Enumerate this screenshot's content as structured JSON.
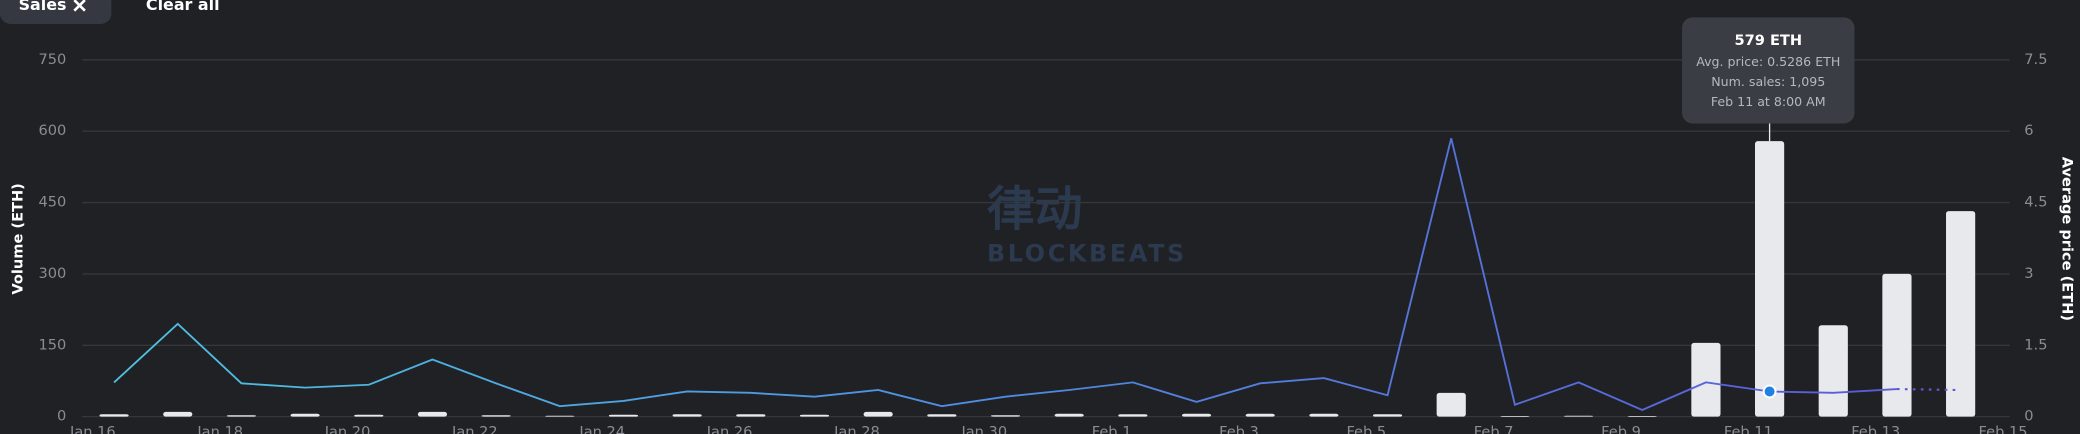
{
  "filters": {
    "chip": "Sales",
    "clear": "Clear all"
  },
  "watermark": {
    "cn": "律动",
    "en": "BLOCKBEATS"
  },
  "tooltip": {
    "title": "579 ETH",
    "avg": "Avg. price: 0.5286 ETH",
    "sales": "Num. sales: 1,095",
    "date": "Feb 11 at 8:00 AM"
  },
  "chart_data": {
    "type": "bar",
    "ylabel": "Volume (ETH)",
    "y2label": "Average price (ETH)",
    "categories": [
      "Jan 16",
      null,
      "Jan 18",
      null,
      "Jan 20",
      null,
      "Jan 22",
      null,
      "Jan 24",
      null,
      "Jan 26",
      null,
      "Jan 28",
      null,
      "Jan 30",
      null,
      "Feb 1",
      null,
      "Feb 3",
      null,
      "Feb 5",
      null,
      "Feb 7",
      null,
      "Feb 9",
      null,
      "Feb 11",
      null,
      "Feb 13",
      null,
      "Feb 15"
    ],
    "series": [
      {
        "type": "bar",
        "color": "#e8e9ec",
        "values": [
          5,
          10,
          3,
          6,
          4,
          10,
          3,
          2,
          4,
          5,
          5,
          4,
          10,
          5,
          3,
          6,
          5,
          6,
          6,
          6,
          5,
          50,
          1,
          2,
          1,
          155,
          579,
          192,
          300,
          432,
          null
        ]
      },
      {
        "type": "line",
        "axis": "y2",
        "color": "#5b5bd6",
        "values": [
          0.72,
          1.95,
          0.7,
          0.61,
          0.67,
          1.2,
          0.7,
          0.22,
          0.33,
          0.53,
          0.5,
          0.42,
          0.56,
          0.22,
          0.42,
          0.56,
          0.72,
          0.31,
          0.7,
          0.81,
          0.45,
          5.85,
          0.25,
          0.72,
          0.14,
          0.72,
          0.5286,
          0.5,
          0.58,
          0.56,
          null
        ]
      }
    ],
    "ylim": [
      0,
      750
    ],
    "yticks": [
      0,
      150,
      300,
      450,
      600,
      750
    ],
    "y2lim": [
      0,
      7.5
    ],
    "y2ticks": [
      0,
      1.5,
      3,
      4.5,
      6,
      7.5
    ],
    "grid": true
  }
}
